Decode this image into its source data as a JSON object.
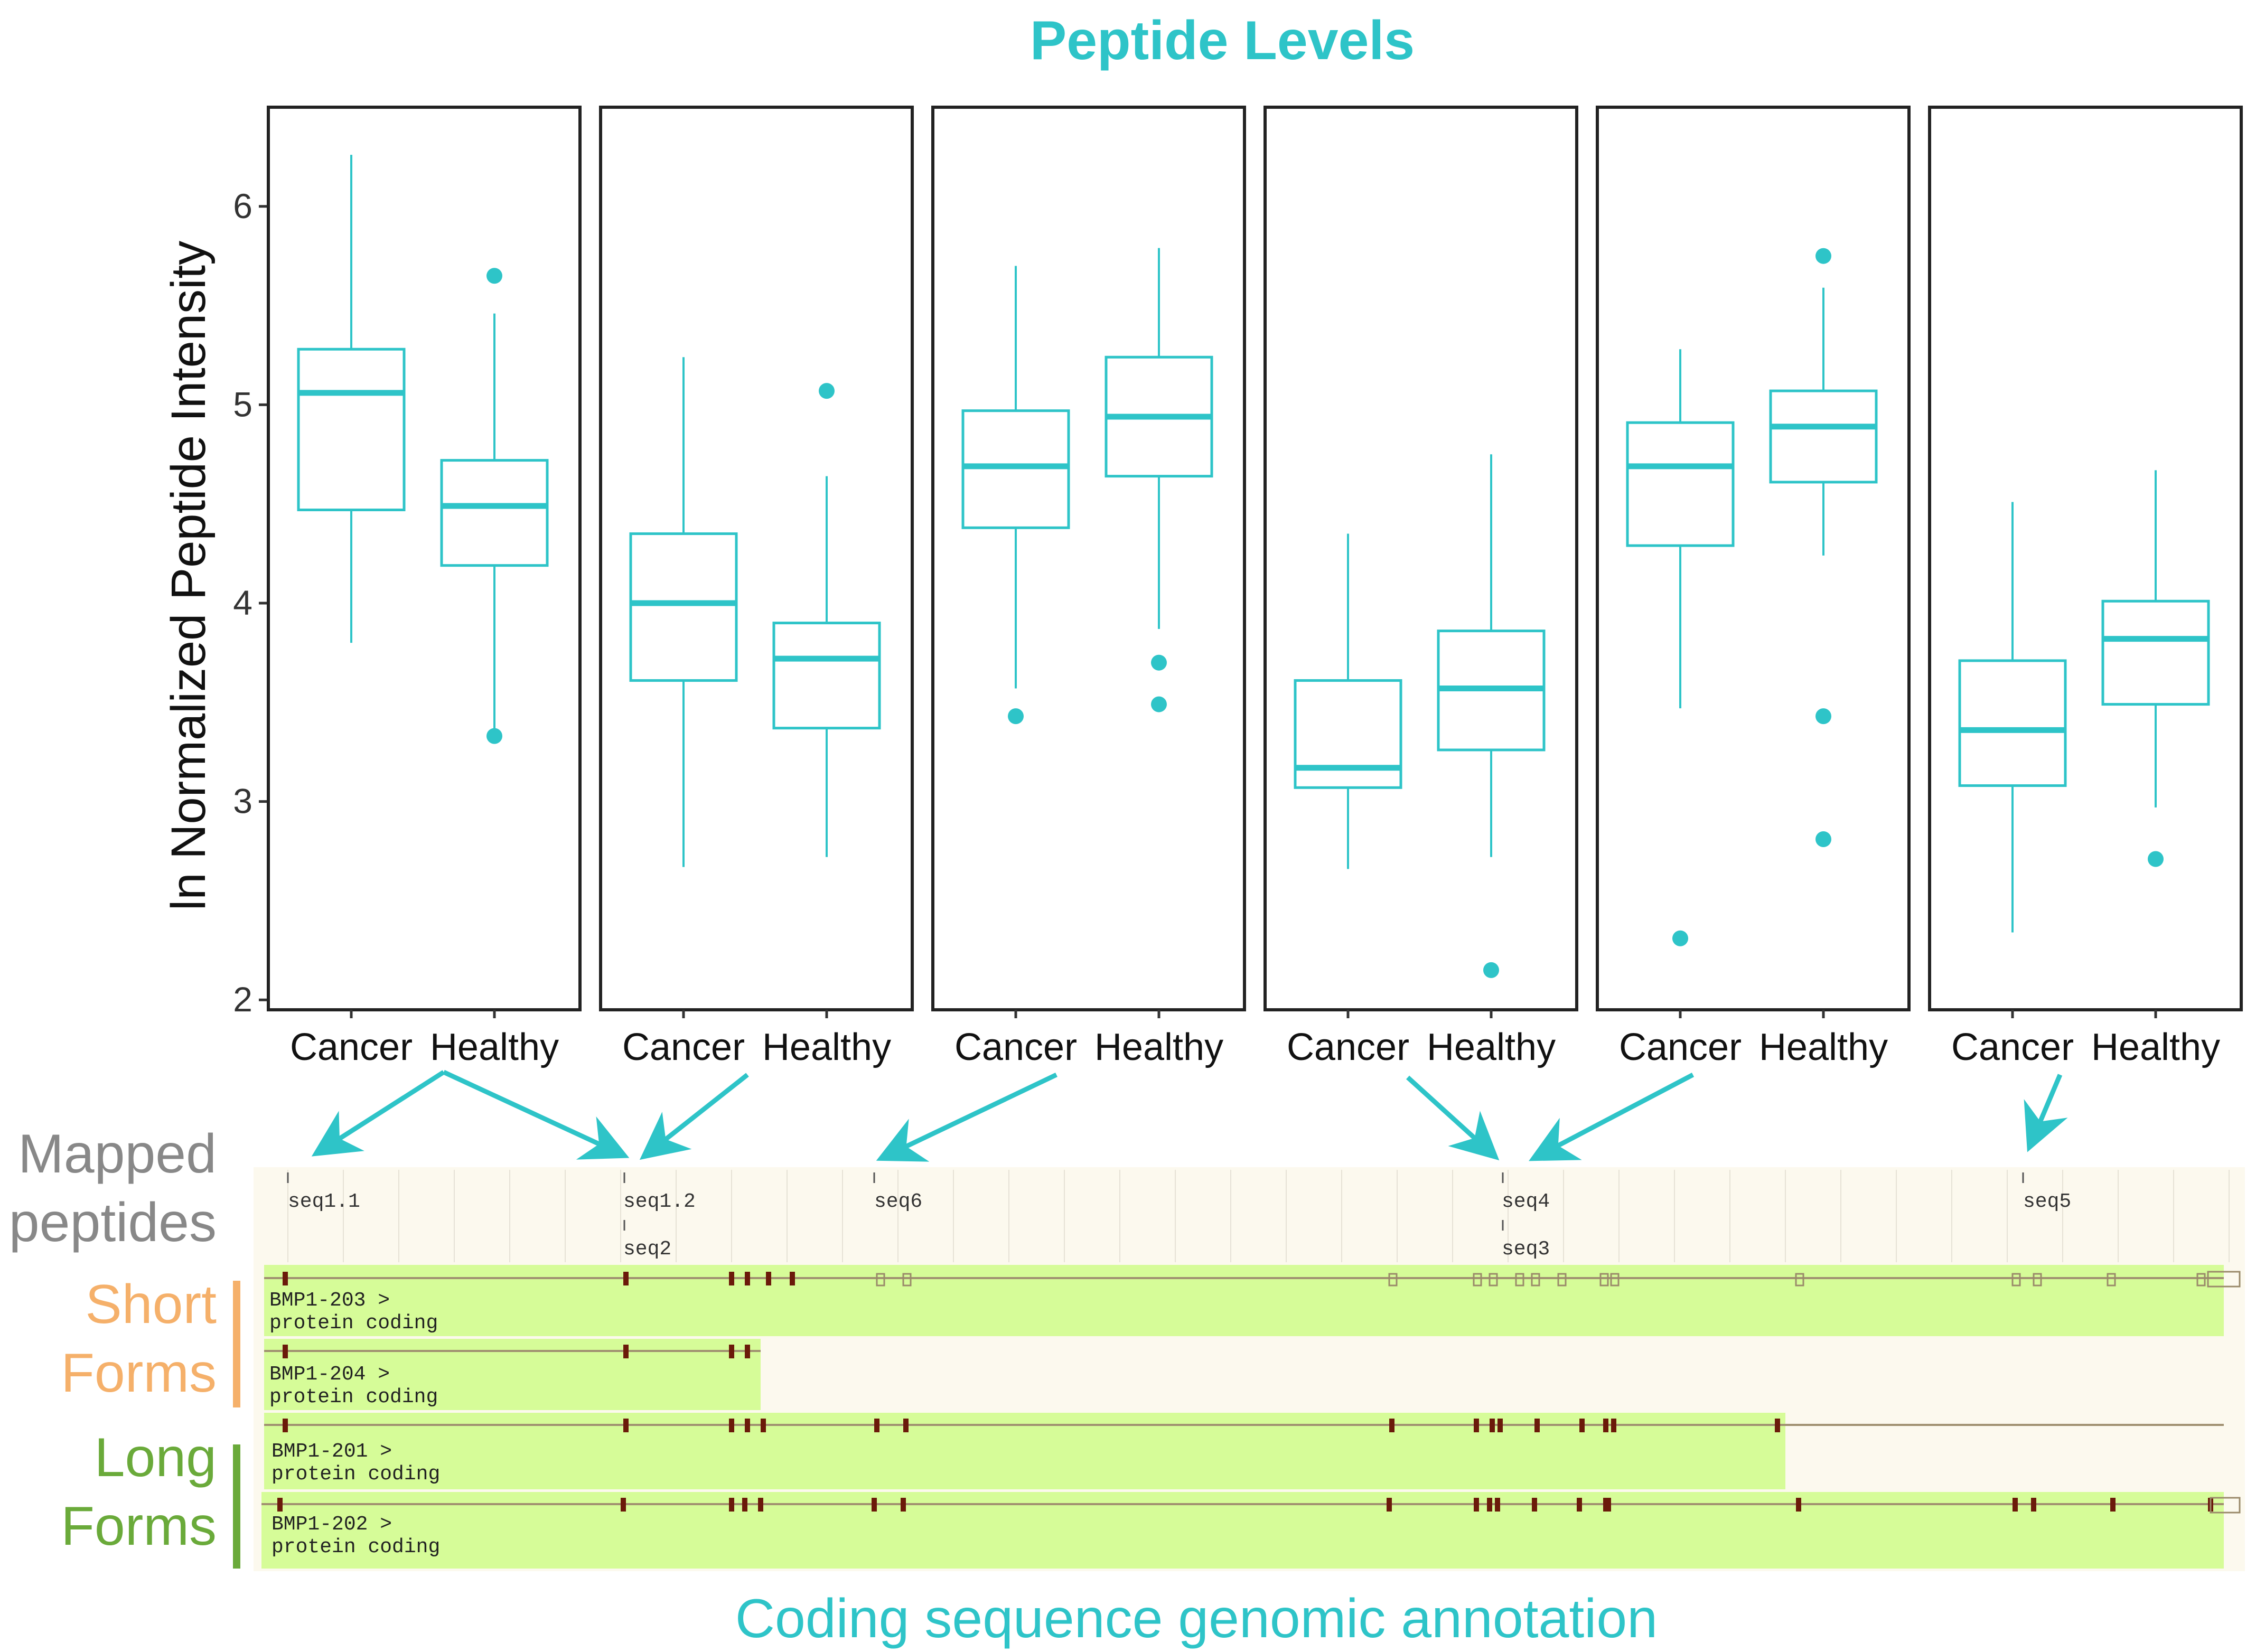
{
  "chart_data": {
    "type": "boxplot",
    "title": "Peptide Levels",
    "ylabel": "ln Normalized Peptide Intensity",
    "xlabel": "",
    "ylim": [
      1.95,
      6.5
    ],
    "yticks": [
      2,
      3,
      4,
      5,
      6
    ],
    "categories": [
      "Cancer",
      "Healthy"
    ],
    "panels": [
      {
        "groups": [
          {
            "name": "Cancer",
            "min": 3.8,
            "q1": 4.47,
            "median": 5.06,
            "q3": 5.28,
            "max": 6.26,
            "outliers": []
          },
          {
            "name": "Healthy",
            "min": 3.34,
            "q1": 4.19,
            "median": 4.49,
            "q3": 4.72,
            "max": 5.46,
            "outliers": [
              5.65,
              3.33
            ]
          }
        ]
      },
      {
        "groups": [
          {
            "name": "Cancer",
            "min": 2.67,
            "q1": 3.61,
            "median": 4.0,
            "q3": 4.35,
            "max": 5.24,
            "outliers": []
          },
          {
            "name": "Healthy",
            "min": 2.72,
            "q1": 3.37,
            "median": 3.72,
            "q3": 3.9,
            "max": 4.64,
            "outliers": [
              5.07
            ]
          }
        ]
      },
      {
        "groups": [
          {
            "name": "Cancer",
            "min": 3.57,
            "q1": 4.38,
            "median": 4.69,
            "q3": 4.97,
            "max": 5.7,
            "outliers": [
              3.43
            ]
          },
          {
            "name": "Healthy",
            "min": 3.87,
            "q1": 4.64,
            "median": 4.94,
            "q3": 5.24,
            "max": 5.79,
            "outliers": [
              3.7,
              3.49
            ]
          }
        ]
      },
      {
        "groups": [
          {
            "name": "Cancer",
            "min": 2.66,
            "q1": 3.07,
            "median": 3.17,
            "q3": 3.61,
            "max": 4.35,
            "outliers": []
          },
          {
            "name": "Healthy",
            "min": 2.72,
            "q1": 3.26,
            "median": 3.57,
            "q3": 3.86,
            "max": 4.75,
            "outliers": [
              2.15
            ]
          }
        ]
      },
      {
        "groups": [
          {
            "name": "Cancer",
            "min": 3.47,
            "q1": 4.29,
            "median": 4.69,
            "q3": 4.91,
            "max": 5.28,
            "outliers": [
              2.31
            ]
          },
          {
            "name": "Healthy",
            "min": 4.24,
            "q1": 4.61,
            "median": 4.89,
            "q3": 5.07,
            "max": 5.59,
            "outliers": [
              5.75,
              3.43,
              2.81
            ]
          }
        ]
      },
      {
        "groups": [
          {
            "name": "Cancer",
            "min": 2.34,
            "q1": 3.08,
            "median": 3.36,
            "q3": 3.71,
            "max": 4.51,
            "outliers": []
          },
          {
            "name": "Healthy",
            "min": 2.97,
            "q1": 3.49,
            "median": 3.82,
            "q3": 4.01,
            "max": 4.67,
            "outliers": [
              2.71
            ]
          }
        ]
      }
    ],
    "annotation": {
      "title": "Coding sequence genomic annotation",
      "mapped_label": "Mapped peptides",
      "short_label": "Short Forms",
      "long_label": "Long Forms",
      "seq_labels": [
        "seq1.1",
        "seq1.2",
        "seq2",
        "seq6",
        "seq4",
        "seq3",
        "seq5"
      ],
      "transcripts": [
        {
          "name": "BMP1-203 >",
          "type": "protein coding"
        },
        {
          "name": "BMP1-204 >",
          "type": "protein coding"
        },
        {
          "name": "BMP1-201 >",
          "type": "protein coding"
        },
        {
          "name": "BMP1-202 >",
          "type": "protein coding"
        }
      ]
    },
    "colors": {
      "box": "#2ec4c8",
      "panel_border": "#222222",
      "short_forms": "#f5b06a",
      "long_forms": "#6aaa3a",
      "track_fill": "#d6fc98",
      "track_bg": "#fcf9ee",
      "exon": "#6b1a0a",
      "mapped_text": "#888888"
    }
  }
}
